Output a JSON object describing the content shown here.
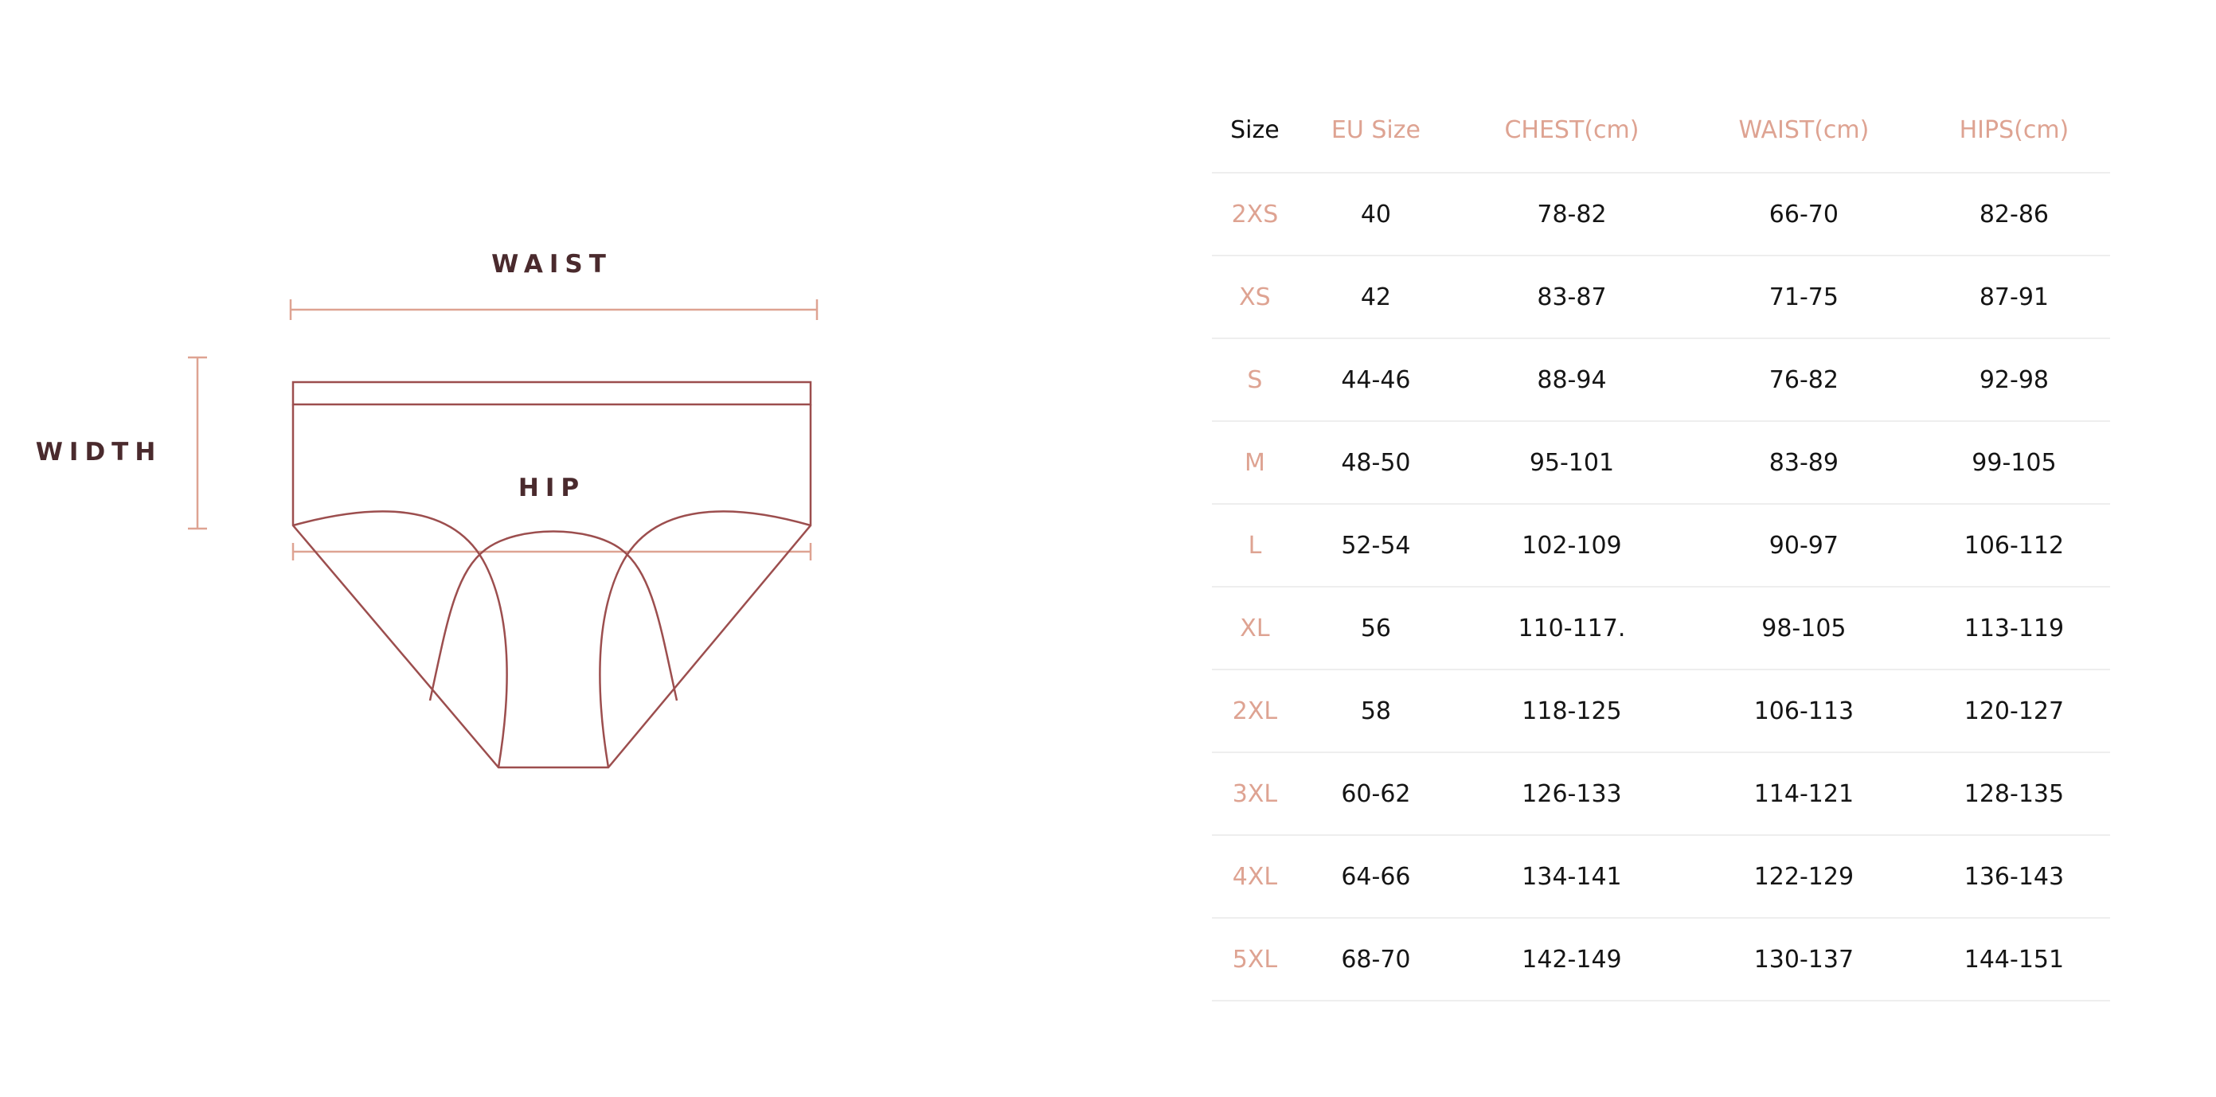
{
  "diagram": {
    "labels": {
      "waist": "WAIST",
      "width": "WIDTH",
      "hip": "HIP"
    },
    "colors": {
      "outline": "#9c4e4e",
      "measure": "#dea392",
      "label": "#4a2a2d"
    }
  },
  "table": {
    "headers": [
      "Size",
      "EU Size",
      "CHEST(cm)",
      "WAIST(cm)",
      "HIPS(cm)"
    ],
    "rows": [
      [
        "2XS",
        "40",
        "78-82",
        "66-70",
        "82-86"
      ],
      [
        "XS",
        "42",
        "83-87",
        "71-75",
        "87-91"
      ],
      [
        "S",
        "44-46",
        "88-94",
        "76-82",
        "92-98"
      ],
      [
        "M",
        "48-50",
        "95-101",
        "83-89",
        "99-105"
      ],
      [
        "L",
        "52-54",
        "102-109",
        "90-97",
        "106-112"
      ],
      [
        "XL",
        "56",
        "110-117.",
        "98-105",
        "113-119"
      ],
      [
        "2XL",
        "58",
        "118-125",
        "106-113",
        "120-127"
      ],
      [
        "3XL",
        "60-62",
        "126-133",
        "114-121",
        "128-135"
      ],
      [
        "4XL",
        "64-66",
        "134-141",
        "122-129",
        "136-143"
      ],
      [
        "5XL",
        "68-70",
        "142-149",
        "130-137",
        "144-151"
      ]
    ],
    "colors": {
      "accent": "#dea392",
      "text": "#151515",
      "divider": "#eeeeee"
    }
  }
}
